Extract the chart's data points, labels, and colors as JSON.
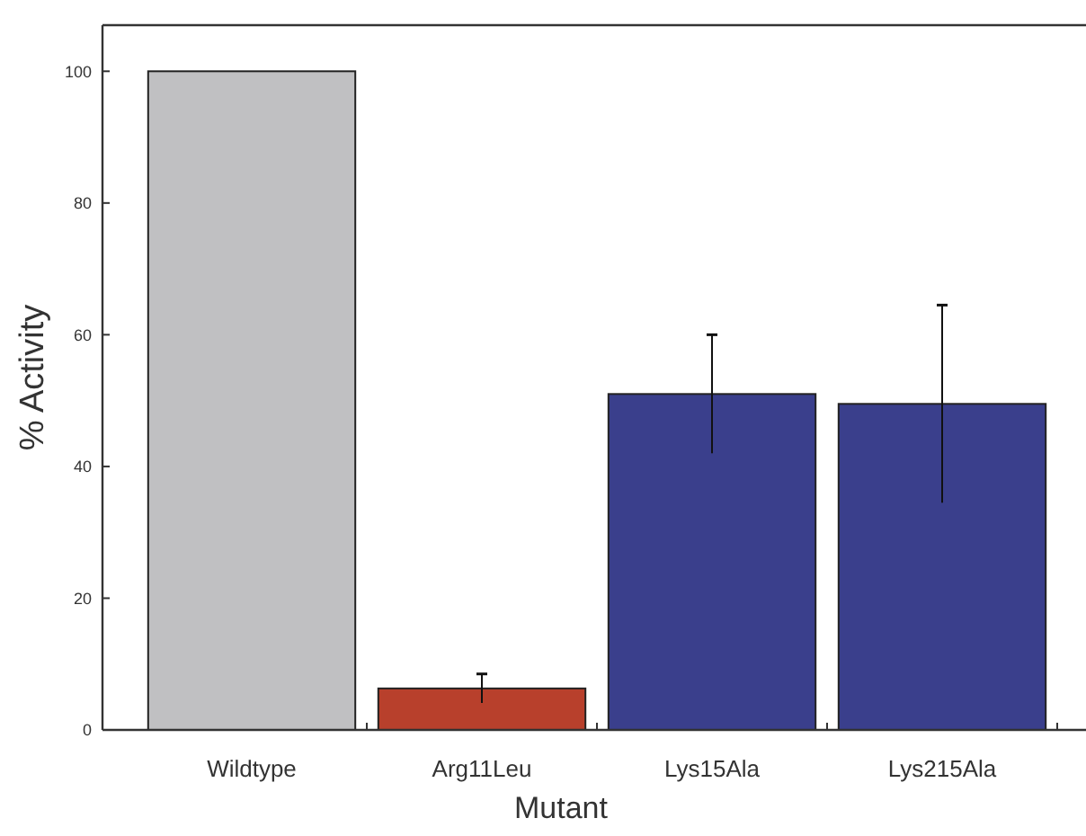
{
  "chart_data": {
    "type": "bar",
    "xlabel": "Mutant",
    "ylabel": "% Activity",
    "categories": [
      "Wildtype",
      "Arg11Leu",
      "Lys15Ala",
      "Lys215Ala"
    ],
    "values": [
      100,
      6.3,
      51,
      49.5
    ],
    "colors": [
      "#c0c0c2",
      "#b8402c",
      "#3a3f8c",
      "#3a3f8c"
    ],
    "errors": [
      null,
      2.2,
      9,
      15
    ],
    "ylim": [
      0,
      107
    ],
    "yticks": [
      0,
      20,
      40,
      60,
      80,
      100
    ],
    "grid": false
  }
}
